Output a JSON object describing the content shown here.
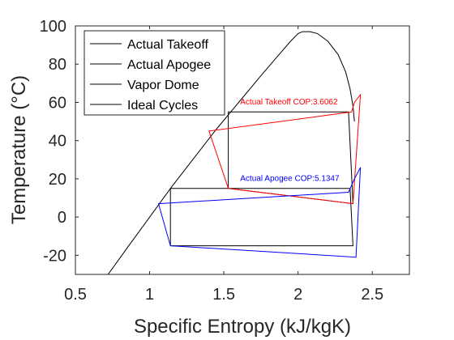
{
  "chart_data": {
    "type": "line",
    "xlabel": "Specific Entropy (kJ/kgK)",
    "ylabel": "Temperature (°C)",
    "xlim": [
      0.5,
      2.75
    ],
    "ylim": [
      -30,
      100
    ],
    "xticks": [
      0.5,
      1,
      1.5,
      2,
      2.5
    ],
    "yticks": [
      -20,
      0,
      20,
      40,
      60,
      80,
      100
    ],
    "xtick_labels": [
      "0.5",
      "1",
      "1.5",
      "2",
      "2.5"
    ],
    "ytick_labels": [
      "-20",
      "0",
      "20",
      "40",
      "60",
      "80",
      "100"
    ],
    "grid": false,
    "legend_position": "top-left",
    "legend": [
      {
        "label": "Actual Takeoff",
        "color": "#ff0000"
      },
      {
        "label": "Actual Apogee",
        "color": "#0000ff"
      },
      {
        "label": "Vapor Dome",
        "color": "#000000"
      },
      {
        "label": "Ideal Cycles",
        "color": "#000000"
      }
    ],
    "series": [
      {
        "name": "Vapor Dome",
        "color": "#000000",
        "x": [
          0.72,
          0.85,
          1.0,
          1.15,
          1.3,
          1.45,
          1.6,
          1.75,
          1.85,
          1.95,
          2.0,
          2.03,
          2.08,
          2.13,
          2.2,
          2.27,
          2.32,
          2.35,
          2.37,
          2.38
        ],
        "y": [
          -30,
          -16,
          0,
          16,
          31,
          46,
          60,
          74,
          83,
          92,
          96,
          97,
          97,
          96,
          92,
          85,
          76,
          67,
          58,
          50
        ]
      },
      {
        "name": "Ideal Cycles",
        "color": "#000000",
        "x": [
          1.53,
          1.53,
          2.34,
          2.37,
          1.53
        ],
        "y": [
          15,
          55,
          55,
          7,
          15
        ]
      },
      {
        "name": "Ideal Cycles",
        "color": "#000000",
        "x": [
          1.14,
          1.14,
          2.35,
          2.37,
          1.14
        ],
        "y": [
          -15,
          15,
          15,
          -15,
          -15
        ]
      },
      {
        "name": "Actual Takeoff",
        "color": "#ff0000",
        "x": [
          1.53,
          1.4,
          2.36,
          2.38,
          2.42,
          2.37,
          1.53
        ],
        "y": [
          15,
          45,
          55,
          60,
          64,
          7,
          15
        ]
      },
      {
        "name": "Actual Apogee",
        "color": "#0000ff",
        "x": [
          1.14,
          1.06,
          2.34,
          2.38,
          2.42,
          2.39,
          1.14
        ],
        "y": [
          -15,
          7,
          13,
          20,
          26,
          -21,
          -15
        ]
      }
    ],
    "annotations": [
      {
        "text": "Actual Takeoff COP:3.6062",
        "x": 1.61,
        "y": 59,
        "color": "#ff0000"
      },
      {
        "text": "Actual Apogee COP:5.1347",
        "x": 1.61,
        "y": 19,
        "color": "#0000ff"
      }
    ]
  }
}
